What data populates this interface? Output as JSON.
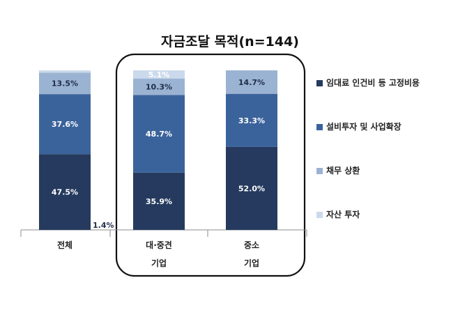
{
  "chart_data": {
    "type": "bar",
    "stacked": true,
    "title": "자금조달 목적(n=144)",
    "categories": [
      [
        "전체"
      ],
      [
        "대·중견",
        "기업"
      ],
      [
        "중소",
        "기업"
      ]
    ],
    "series": [
      {
        "name": "임대료 인건비 등 고정비용",
        "values": [
          47.5,
          35.9,
          52.0
        ],
        "labels": [
          "47.5%",
          "35.9%",
          "52.0%"
        ],
        "color": "#253a5e"
      },
      {
        "name": "설비투자 및 사업확장",
        "values": [
          37.6,
          48.7,
          33.3
        ],
        "labels": [
          "37.6%",
          "48.7%",
          "33.3%"
        ],
        "color": "#3b639b"
      },
      {
        "name": "채무 상환",
        "values": [
          13.5,
          10.3,
          14.7
        ],
        "labels": [
          "13.5%",
          "10.3%",
          "14.7%"
        ],
        "color": "#9bb3d2"
      },
      {
        "name": "자산 투자",
        "values": [
          1.4,
          5.1,
          0.0
        ],
        "labels": [
          "1.4%",
          "5.1%",
          ""
        ],
        "color": "#cbd9ec"
      }
    ],
    "ylim": [
      0,
      100
    ],
    "legend_position": "right",
    "highlight_box": "대·중견 기업, 중소 기업",
    "grid": false
  }
}
